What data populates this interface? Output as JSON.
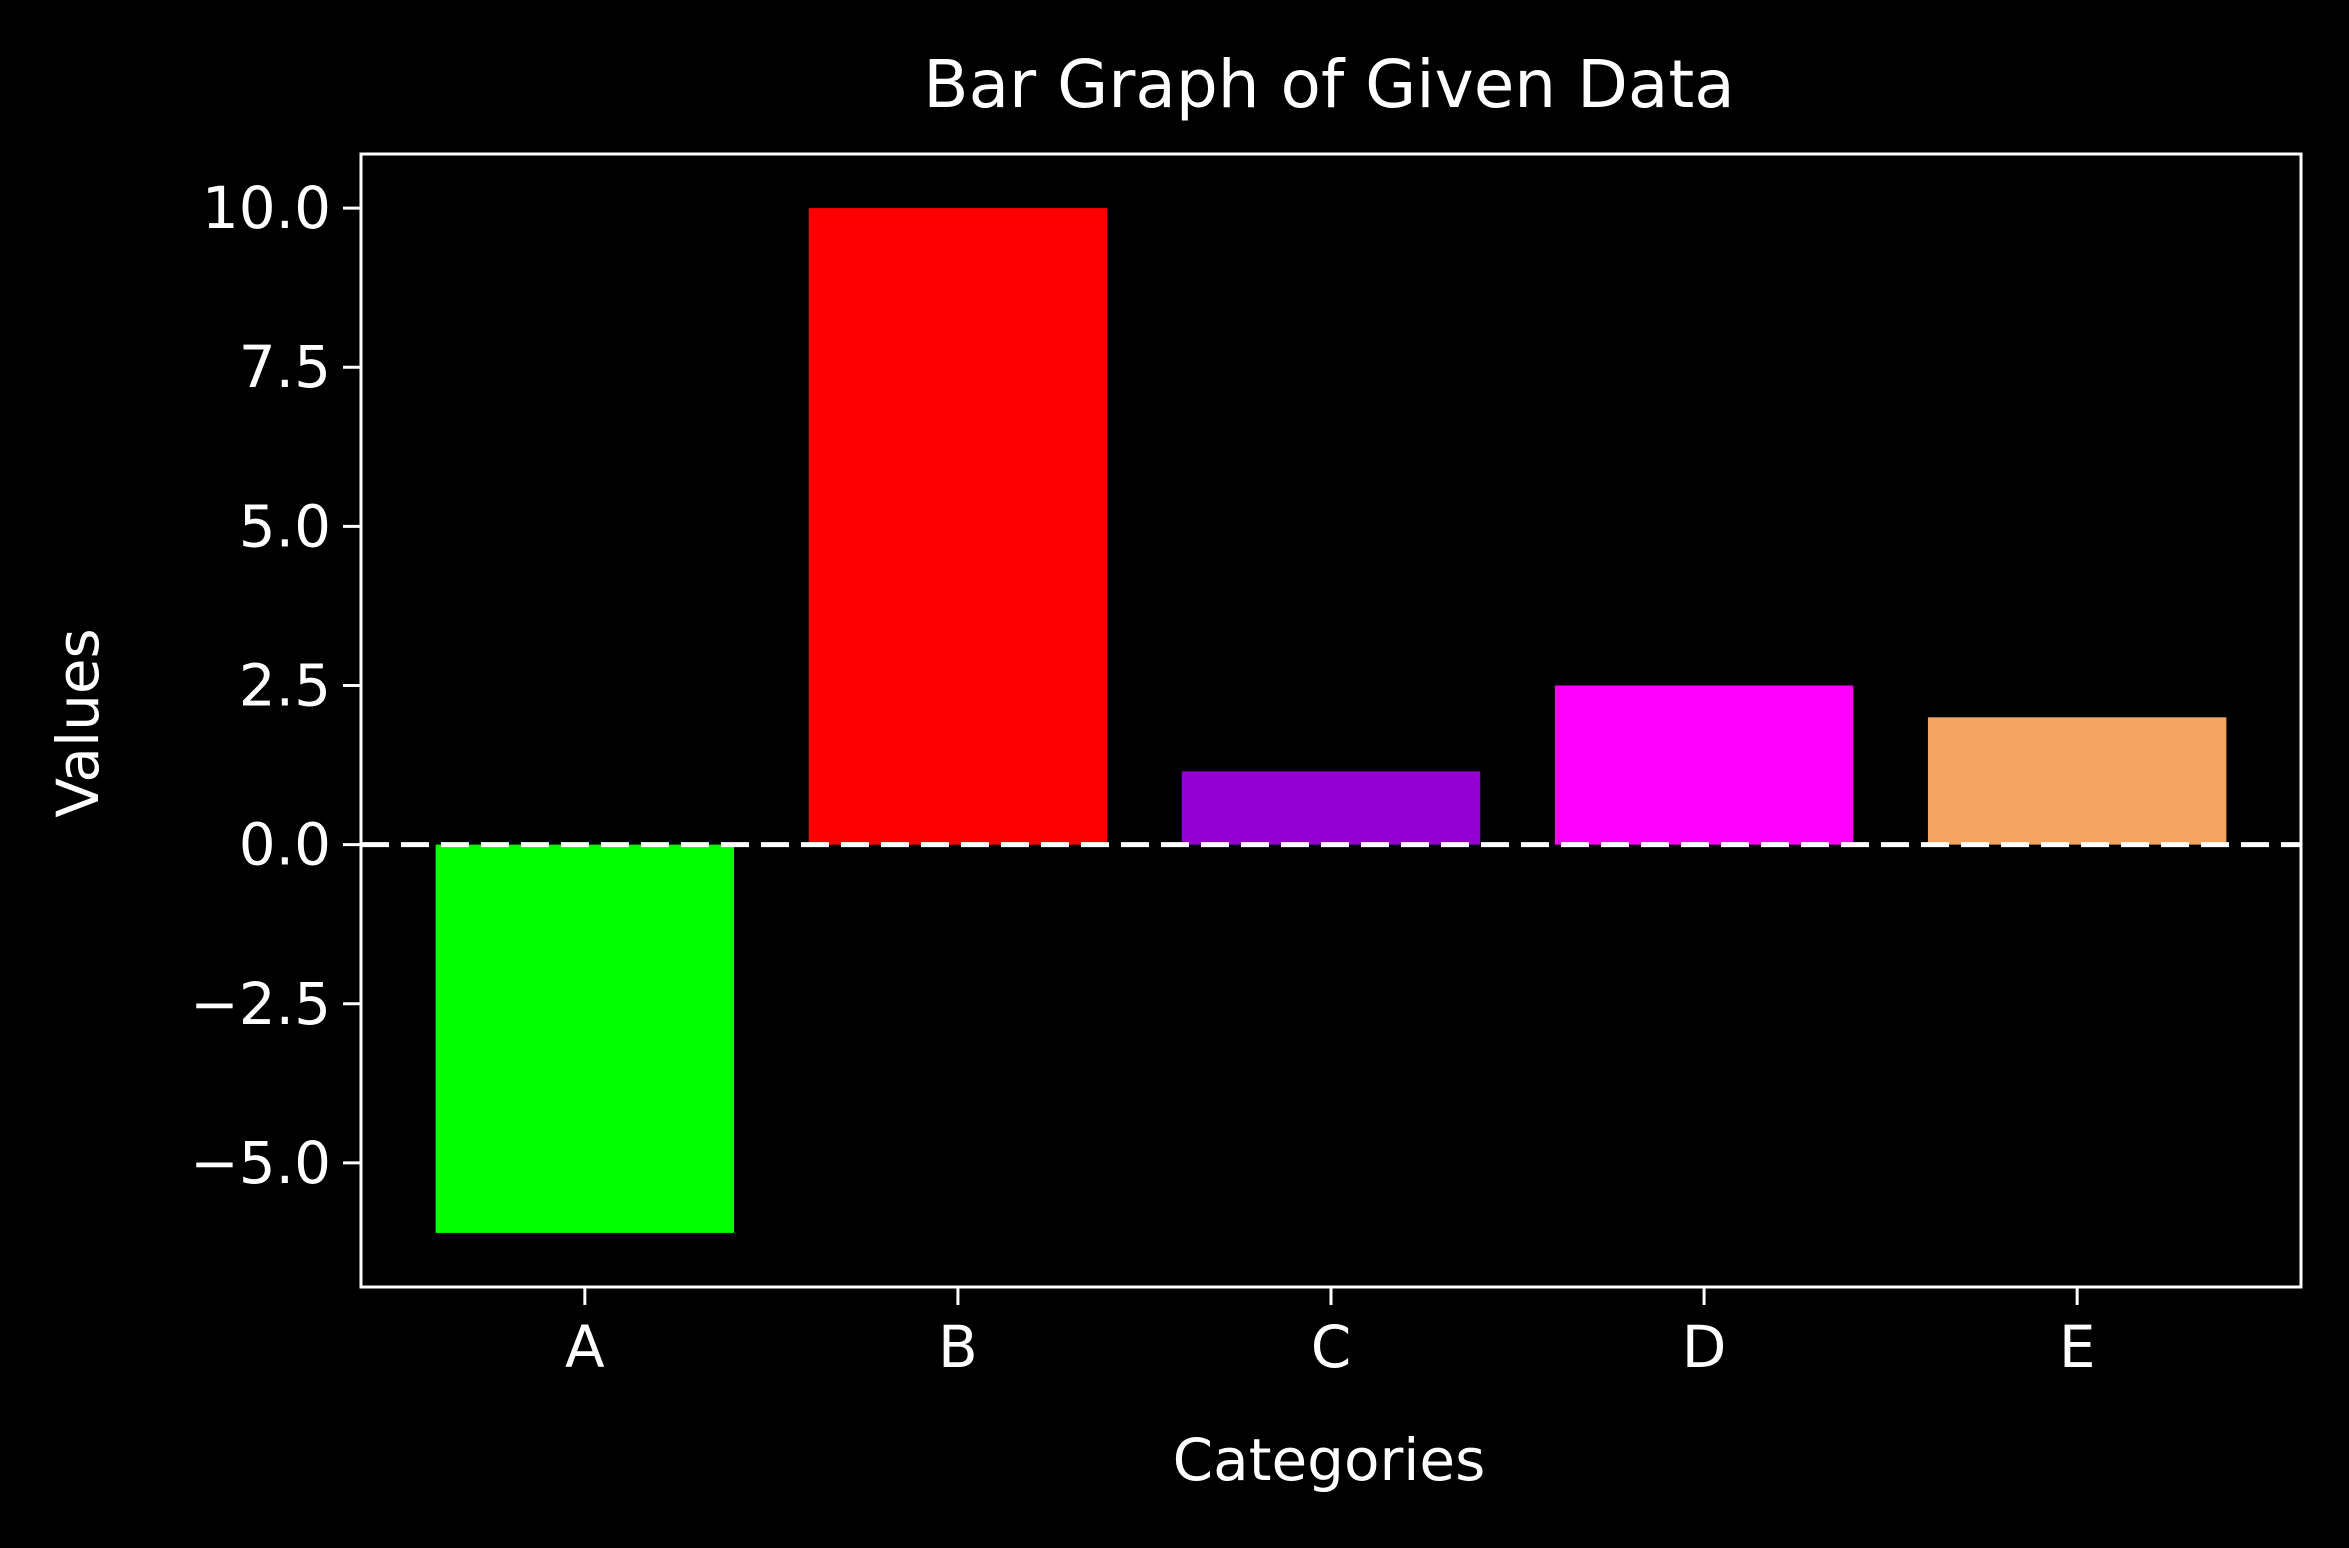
{
  "chart_data": {
    "type": "bar",
    "title": "Bar Graph of Given Data",
    "xlabel": "Categories",
    "ylabel": "Values",
    "categories": [
      "A",
      "B",
      "C",
      "D",
      "E"
    ],
    "values": [
      -6.1,
      10.0,
      1.15,
      2.5,
      2.0
    ],
    "bar_colors": [
      "#00ff00",
      "#ff0000",
      "#9400d3",
      "#ff00ff",
      "#f4a460"
    ],
    "ylim": [
      -6.95,
      10.85
    ],
    "yticks": [
      -5.0,
      -2.5,
      0.0,
      2.5,
      5.0,
      7.5,
      10.0
    ],
    "ytick_labels": [
      "−5.0",
      "−2.5",
      "0.0",
      "2.5",
      "5.0",
      "7.5",
      "10.0"
    ],
    "reference_line": {
      "y": 0,
      "style": "dashed",
      "color": "#ffffff"
    },
    "grid": false,
    "legend": "none",
    "colors": {
      "background": "#000000",
      "foreground": "#ffffff"
    }
  }
}
